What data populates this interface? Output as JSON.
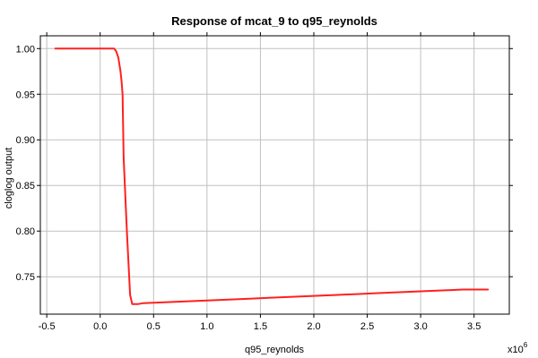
{
  "chart_data": {
    "type": "line",
    "title": "Response of mcat_9 to q95_reynolds",
    "xlabel": "q95_reynolds",
    "ylabel": "cloglog output",
    "x_multiplier": "x10",
    "x_multiplier_exp": "6",
    "xlim": [
      -0.56,
      3.83
    ],
    "ylim": [
      0.709,
      1.014
    ],
    "xticks": [
      -0.5,
      0.0,
      0.5,
      1.0,
      1.5,
      2.0,
      2.5,
      3.0,
      3.5
    ],
    "xtick_labels": [
      "-0.5",
      "0.0",
      "0.5",
      "1.0",
      "1.5",
      "2.0",
      "2.5",
      "3.0",
      "3.5"
    ],
    "yticks": [
      0.75,
      0.8,
      0.85,
      0.9,
      0.95,
      1.0
    ],
    "ytick_labels": [
      "0.75",
      "0.80",
      "0.85",
      "0.90",
      "0.95",
      "1.00"
    ],
    "grid": true,
    "series": [
      {
        "color": "#ff2020",
        "x": [
          -0.42,
          0.0,
          0.13,
          0.15,
          0.17,
          0.19,
          0.2,
          0.21,
          0.22,
          0.25,
          0.28,
          0.3,
          0.35,
          0.4,
          0.6,
          0.8,
          1.0,
          1.2,
          1.4,
          1.6,
          1.8,
          2.0,
          2.2,
          2.4,
          2.6,
          2.8,
          3.0,
          3.2,
          3.4,
          3.63
        ],
        "y": [
          1.0,
          1.0,
          1.0,
          0.997,
          0.99,
          0.975,
          0.965,
          0.95,
          0.88,
          0.8,
          0.73,
          0.72,
          0.72,
          0.721,
          0.722,
          0.723,
          0.724,
          0.725,
          0.726,
          0.727,
          0.728,
          0.729,
          0.73,
          0.731,
          0.732,
          0.733,
          0.734,
          0.735,
          0.736,
          0.736
        ]
      }
    ]
  }
}
